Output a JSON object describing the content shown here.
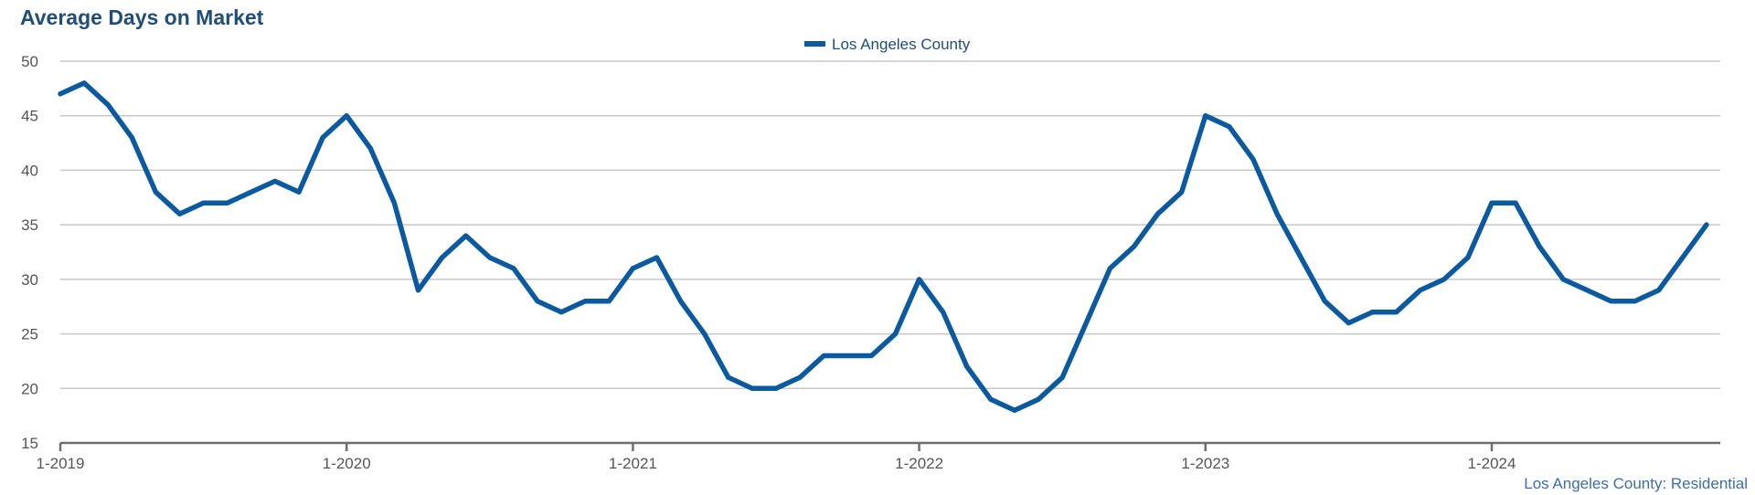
{
  "title": "Average Days on Market",
  "source_note": "Los Angeles County: Residential",
  "colors": {
    "series": "#0b5aa0",
    "title": "#1f4e79",
    "grid": "#c8c8c8"
  },
  "chart_data": {
    "type": "line",
    "title": "Average Days on Market",
    "xlabel": "",
    "ylabel": "",
    "ylim": [
      15,
      50
    ],
    "yticks": [
      15,
      20,
      25,
      30,
      35,
      40,
      45,
      50
    ],
    "x_start": "1-2019",
    "x_end": "10-2024",
    "xtick_labels": [
      "1-2019",
      "1-2020",
      "1-2021",
      "1-2022",
      "1-2023",
      "1-2024"
    ],
    "grid": true,
    "legend_position": "top-center",
    "series": [
      {
        "name": "Los Angeles County",
        "color": "#0b5aa0",
        "values": [
          47,
          48,
          46,
          43,
          38,
          36,
          37,
          37,
          38,
          39,
          38,
          43,
          45,
          42,
          37,
          29,
          32,
          34,
          32,
          31,
          28,
          27,
          28,
          28,
          31,
          32,
          28,
          25,
          21,
          20,
          20,
          21,
          23,
          23,
          23,
          25,
          30,
          27,
          22,
          19,
          18,
          19,
          21,
          26,
          31,
          33,
          36,
          38,
          45,
          44,
          41,
          36,
          32,
          28,
          26,
          27,
          27,
          29,
          30,
          32,
          37,
          37,
          33,
          30,
          29,
          28,
          28,
          29,
          32,
          35
        ]
      }
    ]
  }
}
